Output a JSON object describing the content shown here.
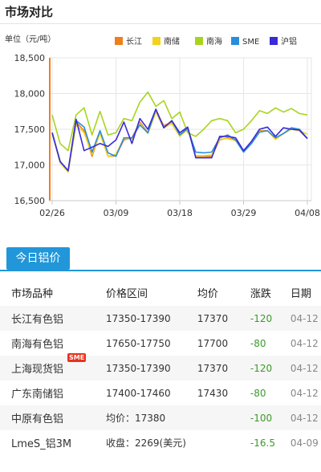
{
  "header": {
    "title": "市场对比"
  },
  "chart_data": {
    "type": "line",
    "unit_label": "单位（元/吨）",
    "ylim": [
      16500,
      18500
    ],
    "yticks": [
      "18,500",
      "18,000",
      "17,500",
      "17,000",
      "16,500"
    ],
    "ytick_values": [
      18500,
      18000,
      17500,
      17000,
      16500
    ],
    "xticks": [
      "02/26",
      "03/09",
      "03/18",
      "03/29",
      "04/08"
    ],
    "xtick_index": [
      0,
      8,
      16,
      24,
      32
    ],
    "legend_position": "top-right",
    "series": [
      {
        "name": "长江",
        "color": "#f07f1a",
        "values": [
          17450,
          17050,
          16920,
          17600,
          17480,
          17120,
          17450,
          17120,
          17130,
          17350,
          17380,
          17600,
          17450,
          17760,
          17550,
          17600,
          17420,
          17520,
          17120,
          17120,
          17120,
          17350,
          17380,
          17350,
          17190,
          17330,
          17480,
          17480,
          17360,
          17440,
          17500,
          17480,
          17370
        ]
      },
      {
        "name": "南储",
        "color": "#f2d21a",
        "values": [
          17450,
          17030,
          16900,
          17560,
          17450,
          17150,
          17440,
          17120,
          17150,
          17370,
          17360,
          17580,
          17440,
          17740,
          17520,
          17580,
          17400,
          17500,
          17130,
          17130,
          17140,
          17360,
          17370,
          17340,
          17190,
          17320,
          17470,
          17480,
          17360,
          17440,
          17500,
          17480,
          17430
        ]
      },
      {
        "name": "南海",
        "color": "#a8d41e",
        "values": [
          17700,
          17300,
          17200,
          17700,
          17800,
          17420,
          17750,
          17420,
          17450,
          17650,
          17620,
          17880,
          18020,
          17820,
          17900,
          17650,
          17740,
          17450,
          17400,
          17500,
          17620,
          17650,
          17620,
          17450,
          17500,
          17620,
          17760,
          17720,
          17800,
          17740,
          17790,
          17720,
          17700
        ]
      },
      {
        "name": "SME",
        "color": "#2a8ddb",
        "values": [
          17450,
          17050,
          16920,
          17620,
          17530,
          17180,
          17480,
          17170,
          17120,
          17380,
          17380,
          17560,
          17450,
          17780,
          17520,
          17620,
          17420,
          17510,
          17180,
          17170,
          17180,
          17380,
          17420,
          17350,
          17180,
          17300,
          17460,
          17480,
          17380,
          17440,
          17520,
          17500,
          17370
        ]
      },
      {
        "name": "沪铝",
        "color": "#3a2ad8",
        "values": [
          17450,
          17050,
          16920,
          17640,
          17200,
          17250,
          17300,
          17260,
          17350,
          17600,
          17300,
          17650,
          17500,
          17780,
          17520,
          17620,
          17450,
          17530,
          17100,
          17100,
          17100,
          17400,
          17400,
          17380,
          17200,
          17330,
          17500,
          17530,
          17400,
          17520,
          17500,
          17490,
          17370
        ]
      }
    ]
  },
  "section": {
    "badge": "今日铝价"
  },
  "table": {
    "headers": {
      "name": "市场品种",
      "range": "价格区间",
      "avg": "均价",
      "change": "涨跌",
      "date": "日期"
    },
    "rows": [
      {
        "name": "长江有色铝",
        "range": "17350-17390",
        "avg": "17370",
        "change": "-120",
        "date": "04-12",
        "tag": ""
      },
      {
        "name": "南海有色铝",
        "range": "17650-17750",
        "avg": "17700",
        "change": "-80",
        "date": "04-12",
        "tag": ""
      },
      {
        "name": "上海现货铝",
        "range": "17350-17390",
        "avg": "17370",
        "change": "-120",
        "date": "04-12",
        "tag": "SME"
      },
      {
        "name": "广东南储铝",
        "range": "17400-17460",
        "avg": "17430",
        "change": "-80",
        "date": "04-12",
        "tag": ""
      },
      {
        "name": "中原有色铝",
        "range": "均价：17380",
        "avg": "",
        "change": "-100",
        "date": "04-12",
        "tag": ""
      },
      {
        "name": "LmeS_铝3M",
        "range": "收盘：2269(美元)",
        "avg": "",
        "change": "-16.5",
        "date": "04-09",
        "tag": ""
      }
    ]
  }
}
